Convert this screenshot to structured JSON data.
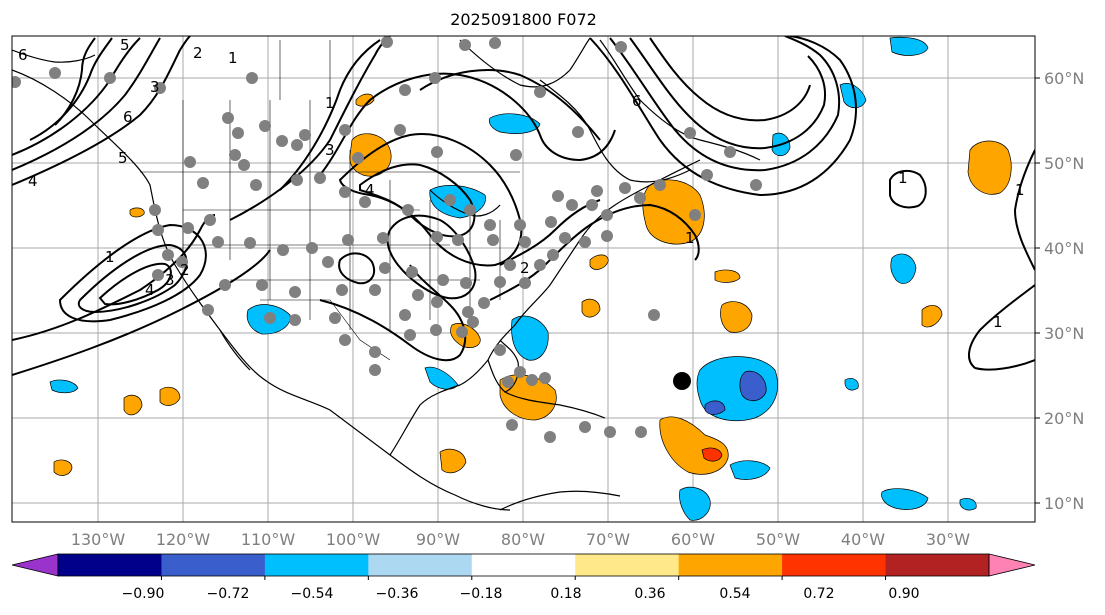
{
  "title": "2025091800 F072",
  "latitude_labels": [
    "60°N",
    "50°N",
    "40°N",
    "30°N",
    "20°N",
    "10°N"
  ],
  "longitude_labels": [
    "130°W",
    "120°W",
    "110°W",
    "100°W",
    "90°W",
    "80°W",
    "70°W",
    "60°W",
    "50°W",
    "40°W",
    "30°W"
  ],
  "colorbar": {
    "tick_labels": [
      "−0.90",
      "−0.72",
      "−0.54",
      "−0.36",
      "−0.18",
      "0.18",
      "0.36",
      "0.54",
      "0.72",
      "0.90"
    ],
    "colors": [
      "#9933cc",
      "#00008b",
      "#3a5fcd",
      "#00bfff",
      "#add8f2",
      "#ffffff",
      "#ffe88a",
      "#ffa500",
      "#ff3300",
      "#b22222",
      "#ff82b4"
    ]
  },
  "contour_labels": [
    "6",
    "5",
    "2",
    "1",
    "3",
    "4",
    "6",
    "5",
    "4",
    "3",
    "2",
    "1",
    "1",
    "2",
    "3",
    "4",
    "6",
    "1",
    "1",
    "1",
    "1"
  ],
  "marker": "storm-position-dot"
}
